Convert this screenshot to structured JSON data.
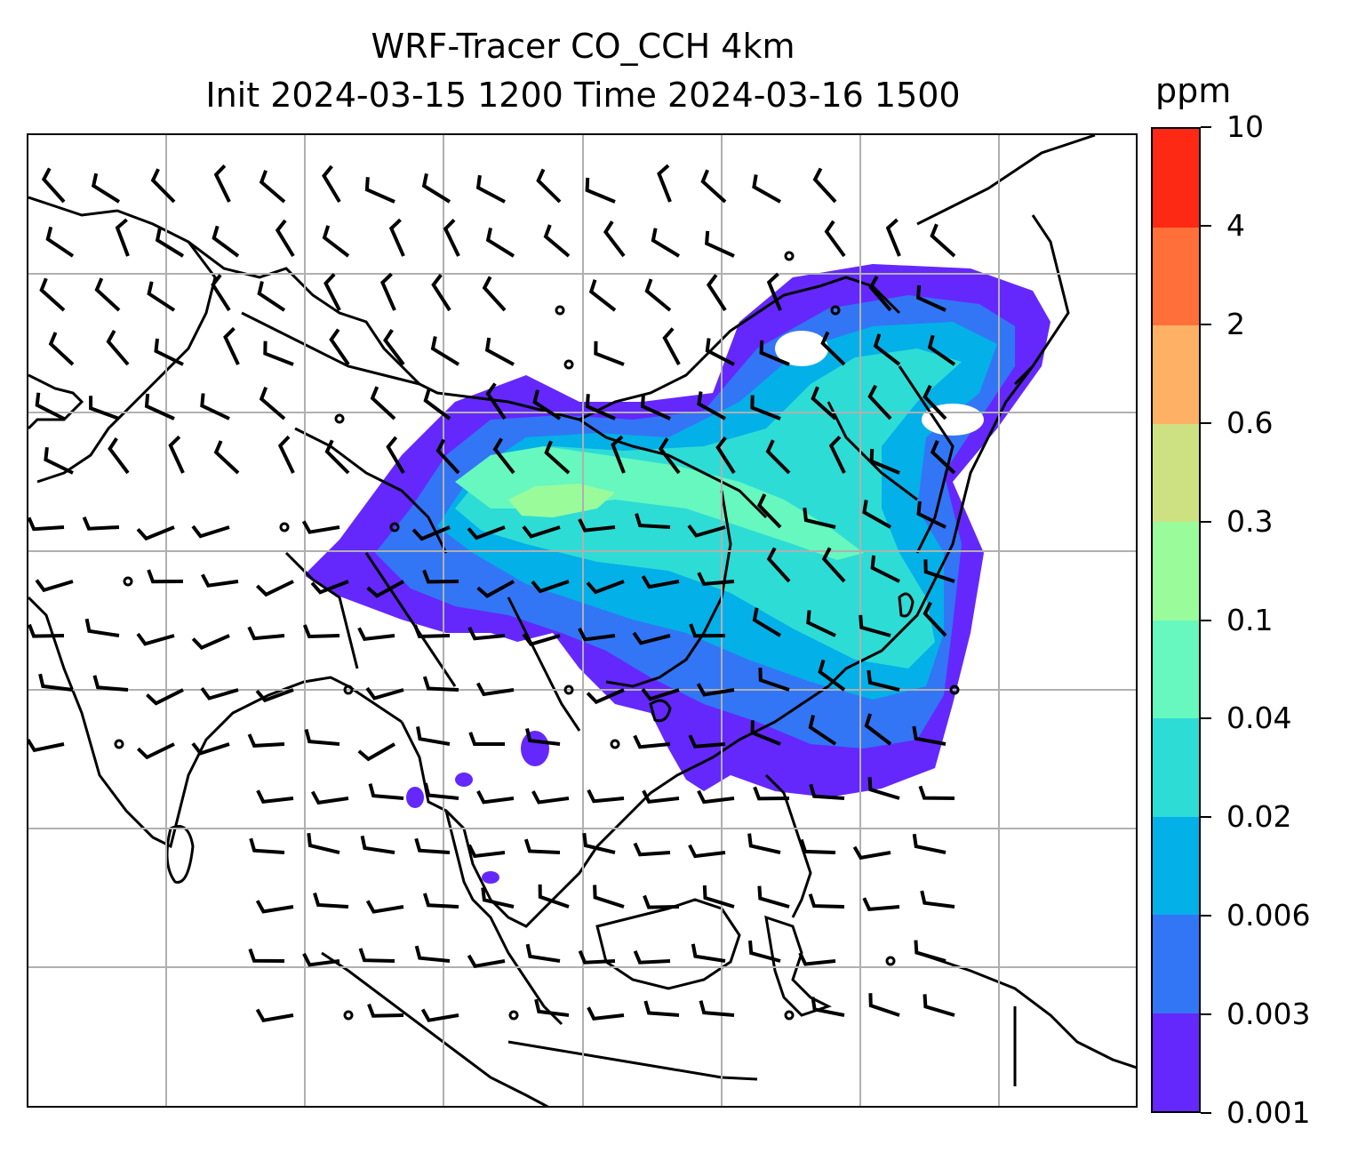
{
  "title_line1": "WRF-Tracer CO_CCH 4km",
  "title_line2": "Init 2024-03-15 1200 Time 2024-03-16 1500",
  "colorbar": {
    "unit": "ppm",
    "levels": [
      "0.001",
      "0.003",
      "0.006",
      "0.02",
      "0.04",
      "0.1",
      "0.3",
      "0.6",
      "2",
      "4",
      "10"
    ],
    "colors": [
      "#6428fc",
      "#3276f5",
      "#04b0e8",
      "#2edcd6",
      "#66f8be",
      "#9afb9b",
      "#cde182",
      "#feb065",
      "#fe6f3a",
      "#fe2915"
    ]
  },
  "map": {
    "gridlines": true,
    "features": [
      "coastlines",
      "country-borders",
      "co-tracer-plume",
      "wind-barbs"
    ],
    "plume_colors": [
      "#6428fc",
      "#3276f5",
      "#04b0e8",
      "#2edcd6",
      "#66f8be",
      "#9afb9b"
    ]
  }
}
